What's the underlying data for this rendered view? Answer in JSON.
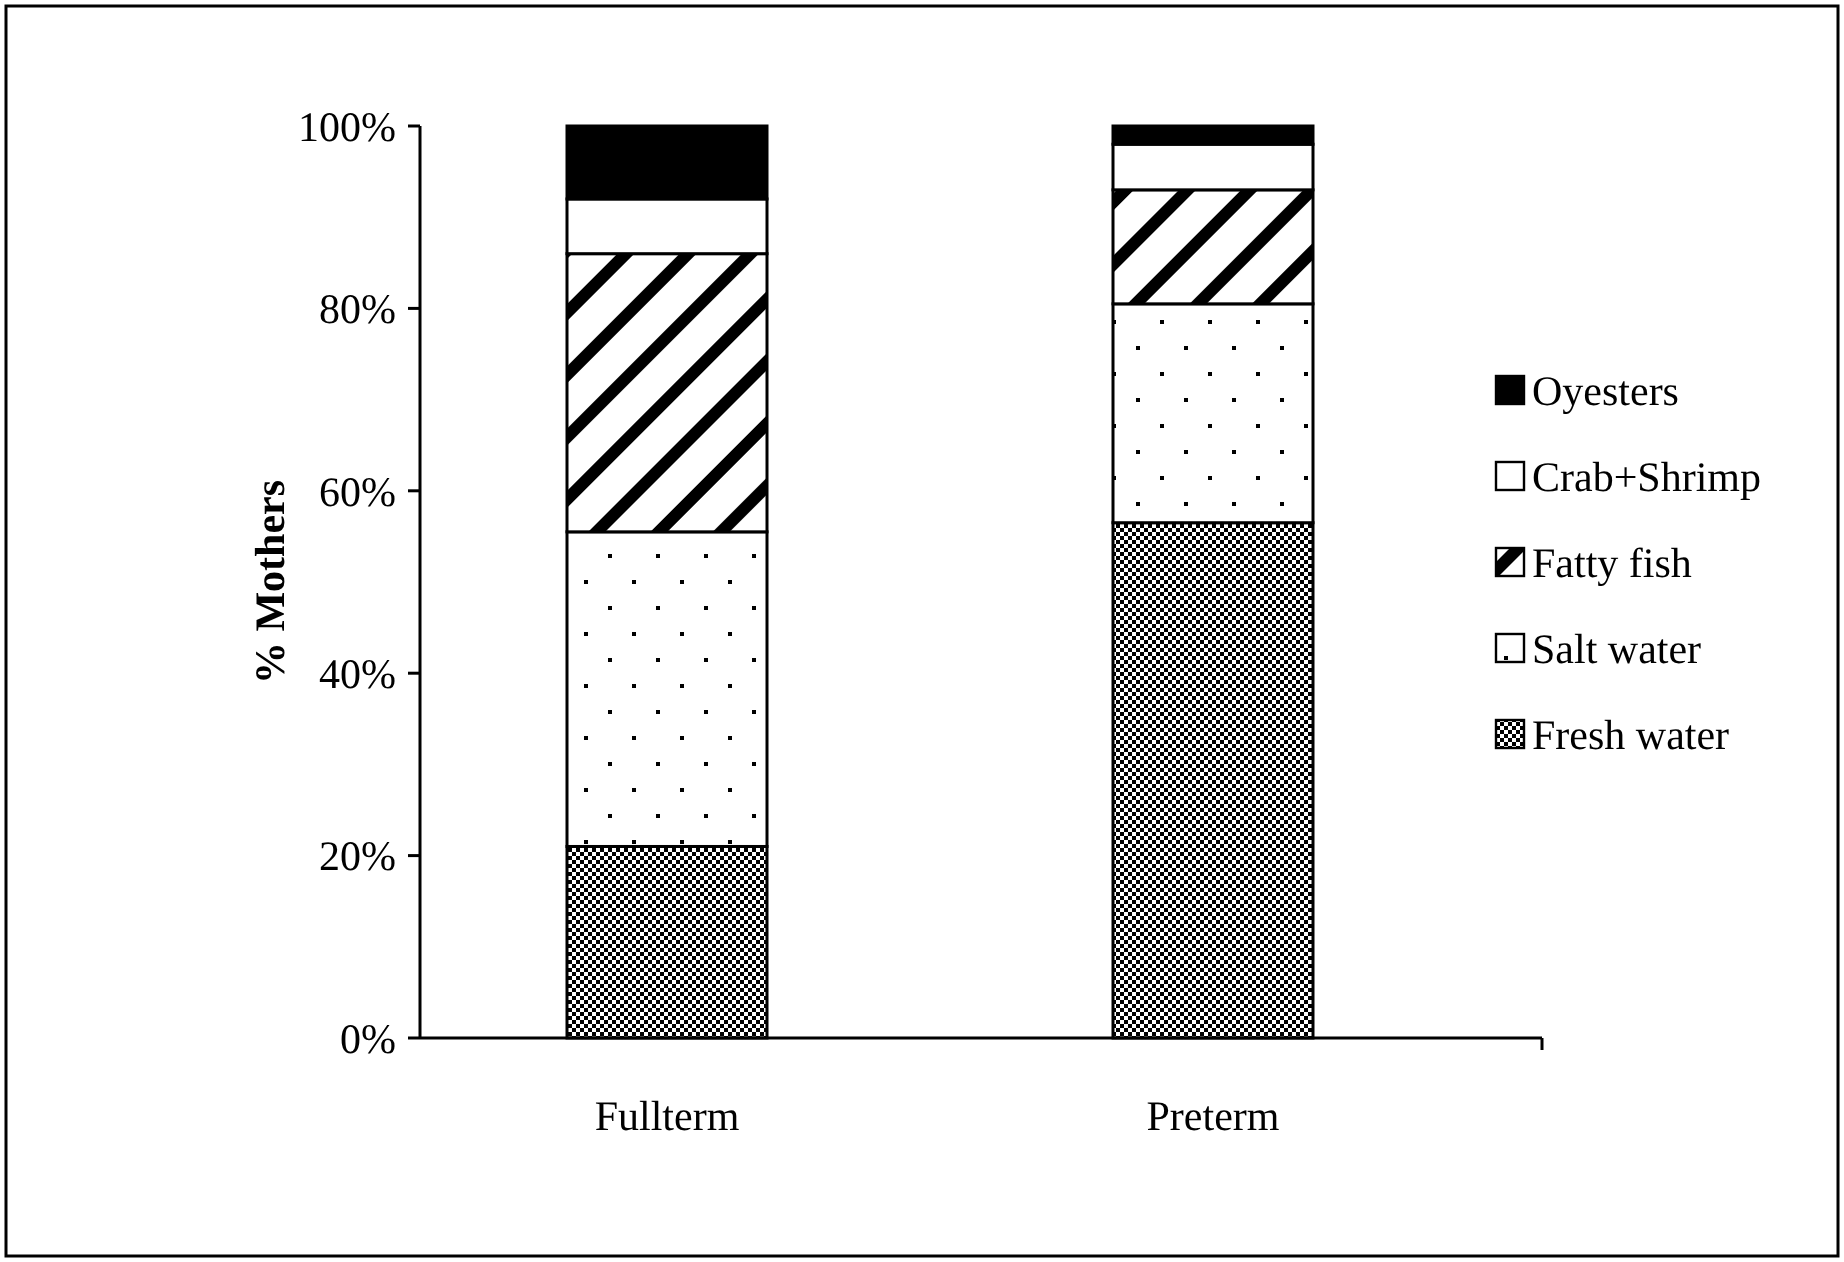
{
  "chart_data": {
    "type": "bar",
    "stacked": true,
    "ylabel": "% Mothers",
    "categories": [
      "Fullterm",
      "Preterm"
    ],
    "series": [
      {
        "name": "Fresh water",
        "color": "#000000",
        "values": [
          21,
          56.5
        ]
      },
      {
        "name": "Salt water",
        "color": "#000000",
        "values": [
          34.5,
          24
        ]
      },
      {
        "name": "Fatty fish",
        "color": "#000000",
        "values": [
          30.5,
          12.5
        ]
      },
      {
        "name": "Crab+Shrimp",
        "color": "#ffffff",
        "values": [
          6,
          5
        ]
      },
      {
        "name": "Oyesters",
        "color": "#000000",
        "values": [
          8,
          2
        ]
      }
    ],
    "ylim": [
      0,
      100
    ],
    "yticks": [
      {
        "value": 0,
        "label": "0%"
      },
      {
        "value": 20,
        "label": "20%"
      },
      {
        "value": 40,
        "label": "40%"
      },
      {
        "value": 60,
        "label": "60%"
      },
      {
        "value": 80,
        "label": "80%"
      },
      {
        "value": 100,
        "label": "100%"
      }
    ],
    "legend": "right",
    "grid": false
  }
}
